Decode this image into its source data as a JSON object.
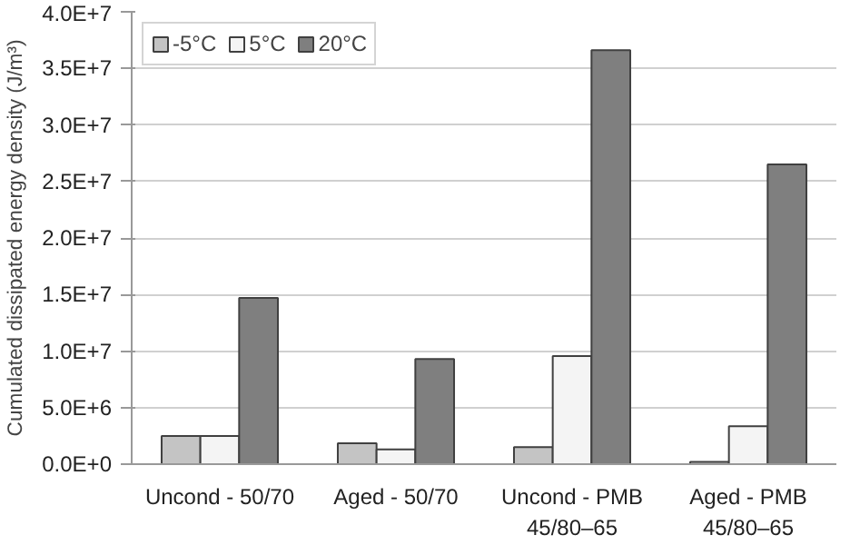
{
  "chart_data": {
    "type": "bar",
    "ylabel": "Cumulated dissipated energy density (J/m³)",
    "categories": [
      "Uncond - 50/70",
      "Aged - 50/70",
      "Uncond - PMB\n45/80–65",
      "Aged - PMB\n45/80–65"
    ],
    "series": [
      {
        "name": "-5°C",
        "color": "#c4c4c4",
        "values": [
          2500000.0,
          1850000.0,
          1500000.0,
          200000.0
        ]
      },
      {
        "name": "5°C",
        "color": "#f4f4f4",
        "values": [
          2500000.0,
          1300000.0,
          9550000.0,
          3350000.0
        ]
      },
      {
        "name": "20°C",
        "color": "#7f7f7f",
        "values": [
          14700000.0,
          9300000.0,
          36600000.0,
          26500000.0
        ]
      }
    ],
    "ylim": [
      0,
      40000000.0
    ],
    "yticks": [
      {
        "value": 0,
        "label": "0.0E+0"
      },
      {
        "value": 5000000.0,
        "label": "5.0E+6"
      },
      {
        "value": 10000000.0,
        "label": "1.0E+7"
      },
      {
        "value": 15000000.0,
        "label": "1.5E+7"
      },
      {
        "value": 20000000.0,
        "label": "2.0E+7"
      },
      {
        "value": 25000000.0,
        "label": "2.5E+7"
      },
      {
        "value": 30000000.0,
        "label": "3.0E+7"
      },
      {
        "value": 35000000.0,
        "label": "3.5E+7"
      },
      {
        "value": 40000000.0,
        "label": "4.0E+7"
      }
    ],
    "grid": "y",
    "legend": "top left"
  }
}
